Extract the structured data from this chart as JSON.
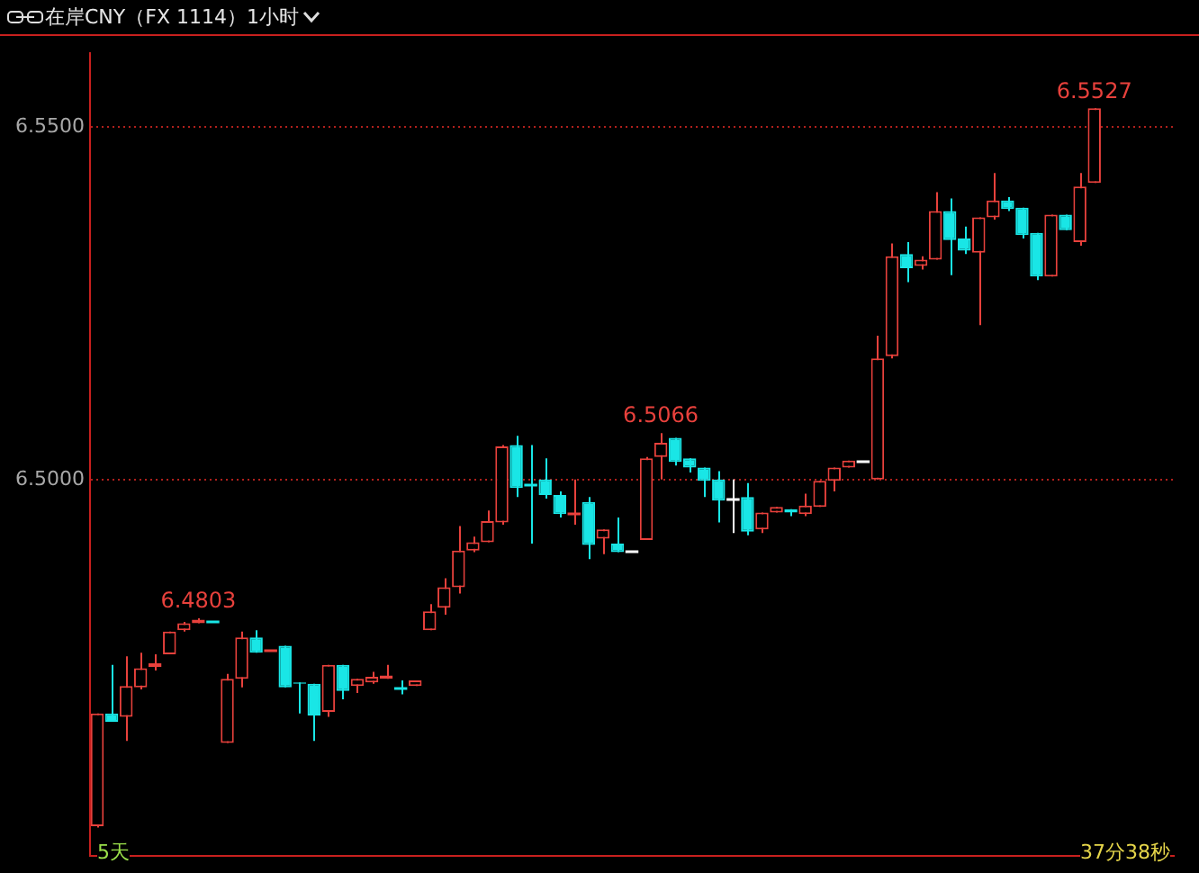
{
  "chart_data": {
    "type": "candlestick",
    "title": "在岸CNY（FX 1114）",
    "subtitle": "1小时",
    "categories": [
      null,
      null,
      null,
      null,
      null,
      null,
      null,
      null,
      null,
      null,
      null,
      null,
      null,
      null,
      null,
      null,
      null,
      null,
      null,
      null,
      null,
      null,
      null,
      null,
      null,
      null,
      null,
      null,
      null,
      null,
      null,
      null,
      null,
      null,
      null,
      null,
      null,
      null,
      null,
      null,
      null,
      null,
      null,
      null,
      null,
      null,
      null,
      null,
      null,
      null,
      null,
      null,
      null,
      null,
      null,
      null,
      null,
      null,
      null,
      null,
      null,
      null,
      null,
      null,
      null,
      null,
      null,
      null,
      null,
      null,
      null,
      null,
      null,
      null,
      null
    ],
    "ohlc": [
      [
        6.4508,
        6.4668,
        6.4506,
        6.4668
      ],
      [
        6.4668,
        6.4737,
        6.4656,
        6.4656
      ],
      [
        6.4663,
        6.4749,
        6.4629,
        6.4707
      ],
      [
        6.4705,
        6.4754,
        6.4702,
        6.4732
      ],
      [
        6.4734,
        6.4752,
        6.4729,
        6.4739
      ],
      [
        6.4752,
        6.4784,
        6.4752,
        6.4784
      ],
      [
        6.4786,
        6.4798,
        6.4784,
        6.4796
      ],
      [
        6.4796,
        6.4803,
        6.4796,
        6.4801
      ],
      [
        6.4798,
        6.4798,
        6.4798,
        6.4798
      ],
      [
        6.4626,
        6.4724,
        6.4626,
        6.4717
      ],
      [
        6.4717,
        6.4784,
        6.4705,
        6.4776
      ],
      [
        6.4776,
        6.4786,
        6.4754,
        6.4754
      ],
      [
        6.4759,
        6.4759,
        6.4759,
        6.4759
      ],
      [
        6.4764,
        6.4764,
        6.4705,
        6.4705
      ],
      [
        6.4712,
        6.4712,
        6.4668,
        6.471
      ],
      [
        6.471,
        6.471,
        6.4629,
        6.4665
      ],
      [
        6.467,
        6.4737,
        6.4663,
        6.4737
      ],
      [
        6.4737,
        6.4737,
        6.4688,
        6.47
      ],
      [
        6.4707,
        6.4717,
        6.4697,
        6.4717
      ],
      [
        6.4712,
        6.4727,
        6.471,
        6.472
      ],
      [
        6.4717,
        6.4737,
        6.4717,
        6.4722
      ],
      [
        6.4705,
        6.4715,
        6.4695,
        6.4705
      ],
      [
        6.4707,
        6.4715,
        6.4707,
        6.4715
      ],
      [
        6.4786,
        6.4823,
        6.4786,
        6.4813
      ],
      [
        6.4818,
        6.486,
        6.4808,
        6.4847
      ],
      [
        6.4847,
        6.4934,
        6.4838,
        6.4899
      ],
      [
        6.4899,
        6.4919,
        6.4897,
        6.4911
      ],
      [
        6.4911,
        6.4956,
        6.4911,
        6.4941
      ],
      [
        6.4939,
        6.5049,
        6.4936,
        6.5047
      ],
      [
        6.5049,
        6.5062,
        6.4975,
        6.4988
      ],
      [
        6.4993,
        6.5049,
        6.4909,
        6.4993
      ],
      [
        6.5,
        6.503,
        6.4973,
        6.4978
      ],
      [
        6.4978,
        6.4983,
        6.4946,
        6.4951
      ],
      [
        6.4953,
        6.5,
        6.4936,
        6.4953
      ],
      [
        6.4968,
        6.4975,
        6.4887,
        6.4907
      ],
      [
        6.4916,
        6.4929,
        6.4894,
        6.4929
      ],
      [
        6.4909,
        6.4946,
        6.4897,
        6.4897
      ],
      [
        6.4899,
        6.4899,
        6.4899,
        6.4899
      ],
      [
        6.4914,
        6.5032,
        6.4914,
        6.503
      ],
      [
        6.5032,
        6.5066,
        6.5,
        6.5052
      ],
      [
        6.5059,
        6.5059,
        6.502,
        6.5025
      ],
      [
        6.503,
        6.503,
        6.501,
        6.5017
      ],
      [
        6.5017,
        6.5017,
        6.4975,
        6.4998
      ],
      [
        6.5,
        6.5012,
        6.4939,
        6.497
      ],
      [
        6.4973,
        6.5,
        6.4924,
        6.4973
      ],
      [
        6.4975,
        6.4995,
        6.4921,
        6.4926
      ],
      [
        6.4929,
        6.4953,
        6.4924,
        6.4953
      ],
      [
        6.4953,
        6.4961,
        6.4953,
        6.4961
      ],
      [
        6.4958,
        6.4958,
        6.4948,
        6.4953
      ],
      [
        6.4951,
        6.498,
        6.4948,
        6.4963
      ],
      [
        6.4961,
        6.4998,
        6.4961,
        6.4998
      ],
      [
        6.4998,
        6.5017,
        6.4983,
        6.5017
      ],
      [
        6.5017,
        6.5027,
        6.5017,
        6.5027
      ],
      [
        6.5027,
        6.5027,
        6.5027,
        6.5027
      ],
      [
        6.5,
        6.5204,
        6.5,
        6.5172
      ],
      [
        6.5175,
        6.5335,
        6.5172,
        6.5317
      ],
      [
        6.532,
        6.5337,
        6.528,
        6.53
      ],
      [
        6.5303,
        6.5317,
        6.5298,
        6.5312
      ],
      [
        6.5312,
        6.5408,
        6.5312,
        6.5381
      ],
      [
        6.5381,
        6.5399,
        6.529,
        6.534
      ],
      [
        6.5342,
        6.5359,
        6.532,
        6.5325
      ],
      [
        6.5322,
        6.5372,
        6.5219,
        6.5372
      ],
      [
        6.5372,
        6.5435,
        6.5369,
        6.5396
      ],
      [
        6.5396,
        6.5401,
        6.5381,
        6.5384
      ],
      [
        6.5386,
        6.5386,
        6.5342,
        6.5347
      ],
      [
        6.535,
        6.535,
        6.5283,
        6.5288
      ],
      [
        6.5288,
        6.5376,
        6.5288,
        6.5376
      ],
      [
        6.5376,
        6.5376,
        6.5354,
        6.5354
      ],
      [
        6.5337,
        6.5435,
        6.5332,
        6.5416
      ],
      [
        6.5421,
        6.5527,
        6.5421,
        6.5527
      ],
      null,
      null,
      null,
      null,
      null
    ],
    "colors": [
      "#e8413c",
      "#19e6e6",
      "#e8413c",
      "#e8413c",
      "#e8413c",
      "#e8413c",
      "#e8413c",
      "#e8413c",
      "#19e6e6",
      "#e8413c",
      "#e8413c",
      "#19e6e6",
      "#e8413c",
      "#19e6e6",
      "#19e6e6",
      "#19e6e6",
      "#e8413c",
      "#19e6e6",
      "#e8413c",
      "#e8413c",
      "#e8413c",
      "#19e6e6",
      "#e8413c",
      "#e8413c",
      "#e8413c",
      "#e8413c",
      "#e8413c",
      "#e8413c",
      "#e8413c",
      "#19e6e6",
      "#19e6e6",
      "#19e6e6",
      "#19e6e6",
      "#e8413c",
      "#19e6e6",
      "#e8413c",
      "#19e6e6",
      "#ffffff",
      "#e8413c",
      "#e8413c",
      "#19e6e6",
      "#19e6e6",
      "#19e6e6",
      "#19e6e6",
      "#ffffff",
      "#19e6e6",
      "#e8413c",
      "#e8413c",
      "#19e6e6",
      "#e8413c",
      "#e8413c",
      "#e8413c",
      "#e8413c",
      "#ffffff",
      "#e8413c",
      "#e8413c",
      "#19e6e6",
      "#e8413c",
      "#e8413c",
      "#19e6e6",
      "#19e6e6",
      "#e8413c",
      "#e8413c",
      "#19e6e6",
      "#19e6e6",
      "#19e6e6",
      "#e8413c",
      "#19e6e6",
      "#e8413c",
      "#e8413c",
      null,
      null,
      null,
      null,
      null
    ],
    "value_labels": [
      null,
      null,
      null,
      null,
      null,
      null,
      null,
      "6.4803",
      null,
      null,
      null,
      null,
      null,
      null,
      null,
      null,
      null,
      null,
      null,
      null,
      null,
      null,
      null,
      null,
      null,
      null,
      null,
      null,
      null,
      null,
      null,
      null,
      null,
      null,
      null,
      null,
      null,
      null,
      null,
      "6.5066",
      null,
      null,
      null,
      null,
      null,
      null,
      null,
      null,
      null,
      null,
      null,
      null,
      null,
      null,
      null,
      null,
      null,
      null,
      null,
      null,
      null,
      null,
      null,
      null,
      null,
      null,
      null,
      null,
      null,
      "6.5527",
      null,
      null,
      null,
      null,
      null
    ],
    "ylim": [
      6.4466,
      6.5605
    ],
    "yticks": [
      {
        "value": 6.5,
        "label": "6.5000"
      },
      {
        "value": 6.55,
        "label": "6.5500"
      }
    ],
    "grid": "y",
    "legend": false,
    "tick_labels": "y",
    "annotations": [
      "5天",
      "37分38秒"
    ]
  }
}
